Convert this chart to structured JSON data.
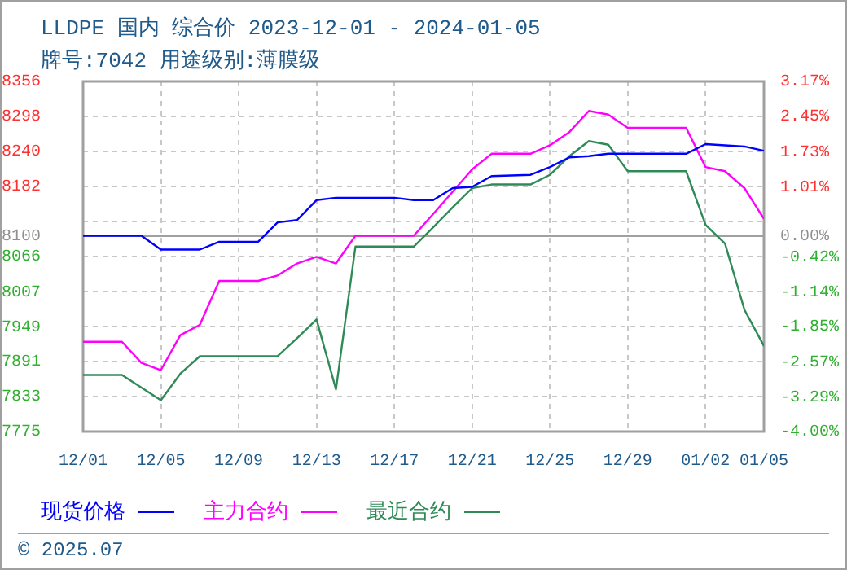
{
  "chart_data": {
    "type": "line",
    "title": "LLDPE 国内 综合价 2023-12-01 - 2024-01-05",
    "subtitle": "牌号:7042 用途级别:薄膜级",
    "x": [
      "2023-12-01",
      "2023-12-02",
      "2023-12-03",
      "2023-12-04",
      "2023-12-05",
      "2023-12-06",
      "2023-12-07",
      "2023-12-08",
      "2023-12-09",
      "2023-12-10",
      "2023-12-11",
      "2023-12-12",
      "2023-12-13",
      "2023-12-14",
      "2023-12-15",
      "2023-12-16",
      "2023-12-17",
      "2023-12-18",
      "2023-12-19",
      "2023-12-20",
      "2023-12-21",
      "2023-12-22",
      "2023-12-23",
      "2023-12-24",
      "2023-12-25",
      "2023-12-26",
      "2023-12-27",
      "2023-12-28",
      "2023-12-29",
      "2023-12-30",
      "2023-12-31",
      "2024-01-01",
      "2024-01-02",
      "2024-01-03",
      "2024-01-04",
      "2024-01-05"
    ],
    "series": [
      {
        "name": "现货价格",
        "color": "#0000ff",
        "values": [
          8100,
          8100,
          8100,
          8100,
          8077,
          8077,
          8077,
          8090,
          8090,
          8090,
          8122,
          8126,
          8159,
          8163,
          8163,
          8163,
          8163,
          8159,
          8159,
          8179,
          8181,
          8199,
          8200,
          8201,
          8214,
          8230,
          8232,
          8236,
          8236,
          8236,
          8236,
          8236,
          8252,
          8250,
          8248,
          8241
        ]
      },
      {
        "name": "主力合约",
        "color": "#ff00ff",
        "values": [
          7924,
          7924,
          7924,
          7889,
          7877,
          7935,
          7952,
          8025,
          8025,
          8025,
          8034,
          8054,
          8065,
          8054,
          8100,
          8100,
          8100,
          8100,
          8136,
          8173,
          8210,
          8236,
          8236,
          8236,
          8250,
          8272,
          8307,
          8301,
          8279,
          8279,
          8279,
          8279,
          8214,
          8207,
          8179,
          8128
        ]
      },
      {
        "name": "最近合约",
        "color": "#2e8b57",
        "values": [
          7869,
          7869,
          7869,
          7848,
          7827,
          7871,
          7900,
          7900,
          7900,
          7900,
          7900,
          7930,
          7961,
          7845,
          8082,
          8082,
          8082,
          8082,
          8114,
          8147,
          8179,
          8185,
          8185,
          8185,
          8201,
          8232,
          8257,
          8251,
          8207,
          8207,
          8207,
          8207,
          8118,
          8087,
          7977,
          7917
        ]
      }
    ],
    "xlim": [
      "2023-12-01",
      "2024-01-05"
    ],
    "xticks": [
      {
        "value": "2023-12-01",
        "label": "12/01"
      },
      {
        "value": "2023-12-05",
        "label": "12/05"
      },
      {
        "value": "2023-12-09",
        "label": "12/09"
      },
      {
        "value": "2023-12-13",
        "label": "12/13"
      },
      {
        "value": "2023-12-17",
        "label": "12/17"
      },
      {
        "value": "2023-12-21",
        "label": "12/21"
      },
      {
        "value": "2023-12-25",
        "label": "12/25"
      },
      {
        "value": "2023-12-29",
        "label": "12/29"
      },
      {
        "value": "2024-01-02",
        "label": "01/02"
      },
      {
        "value": "2024-01-05",
        "label": "01/05"
      }
    ],
    "ylim": [
      7775,
      8356
    ],
    "yticks": [
      8356,
      8298,
      8240,
      8182,
      {
        "value": 8124,
        "label": null
      },
      8100,
      8066,
      8007,
      7949,
      7891,
      7833,
      7775
    ],
    "y2lim": [
      -4.0,
      3.17
    ],
    "y2ticks": [
      {
        "value": 3.17,
        "label": "3.17%"
      },
      {
        "value": 2.45,
        "label": "2.45%"
      },
      {
        "value": 1.73,
        "label": "1.73%"
      },
      {
        "value": 1.01,
        "label": "1.01%"
      },
      {
        "value": 0,
        "label": "0.00%"
      },
      {
        "value": -0.42,
        "label": "-0.42%"
      },
      {
        "value": -1.14,
        "label": "-1.14%"
      },
      {
        "value": -1.85,
        "label": "-1.85%"
      },
      {
        "value": -2.57,
        "label": "-2.57%"
      },
      {
        "value": -3.29,
        "label": "-3.29%"
      },
      {
        "value": -4.0,
        "label": "-4.00%"
      }
    ],
    "ref_lines": [
      {
        "axis": "y",
        "value": 8100,
        "color": "#a0a0a0"
      }
    ],
    "annotations": [
      "© 2025.07"
    ],
    "grid": true,
    "legend": "bottom",
    "marker": "none",
    "line_style": "solid"
  }
}
